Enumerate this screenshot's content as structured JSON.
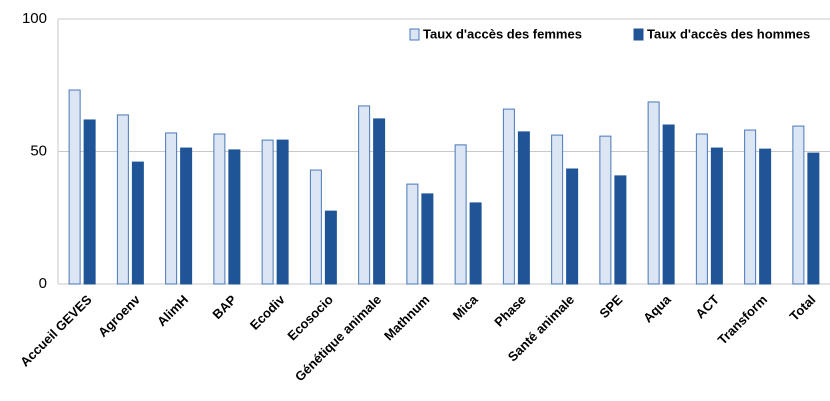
{
  "chart_data": {
    "type": "bar",
    "categories": [
      "Accueil GEVES",
      "Agroenv",
      "AlimH",
      "BAP",
      "Ecodiv",
      "Ecosocio",
      "Génétique animale",
      "Mathnum",
      "Mica",
      "Phase",
      "Santé animale",
      "SPE",
      "Aqua",
      "ACT",
      "Transform",
      "Total"
    ],
    "series": [
      {
        "name": "Taux d'accès des femmes",
        "color": "#dbe5f4",
        "stroke": "#4a78b8",
        "values": [
          73.2,
          63.8,
          57,
          56.6,
          54.3,
          43,
          67.2,
          37.7,
          52.5,
          66,
          56.2,
          55.8,
          68.7,
          56.6,
          58.1,
          59.6
        ]
      },
      {
        "name": "Taux d'accès des hommes",
        "color": "#1f5597",
        "stroke": "#1f5597",
        "values": [
          61.9,
          46,
          51.3,
          50.6,
          54.3,
          27.5,
          62.3,
          34,
          30.6,
          57.4,
          43.4,
          40.8,
          60,
          51.3,
          50.9,
          49.4
        ]
      }
    ],
    "ylim": [
      0,
      100
    ],
    "yticks": [
      0,
      50,
      100
    ],
    "grid": true,
    "legend": "top-right"
  }
}
